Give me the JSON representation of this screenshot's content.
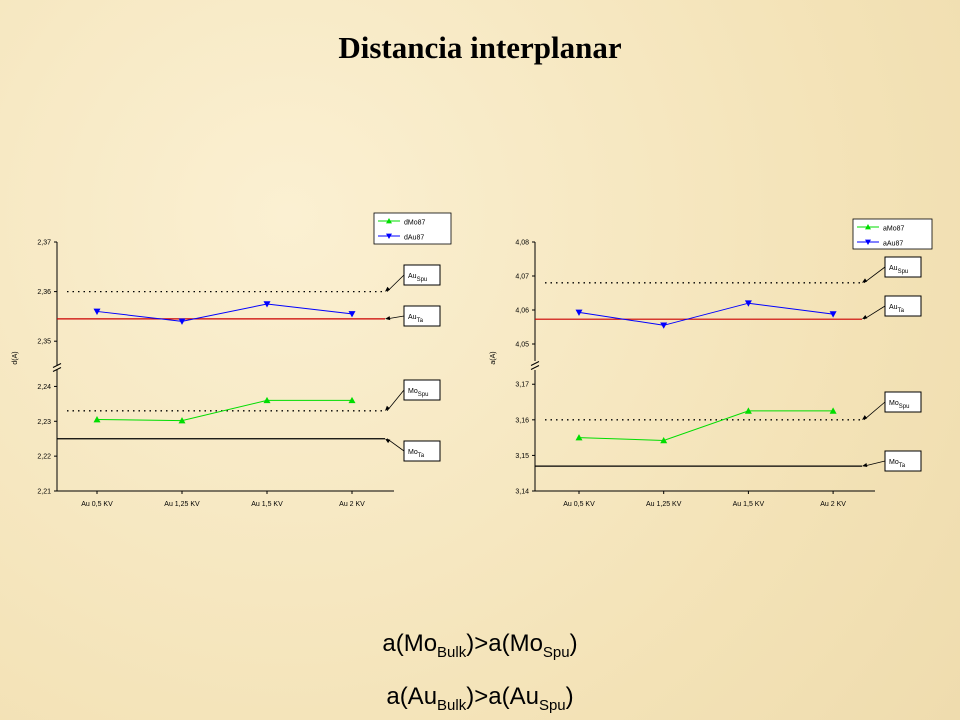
{
  "slide_title": "Distancia interplanar",
  "chart_data": [
    {
      "type": "line",
      "y_label": "d(A)",
      "categories": [
        "Au 0,5 KV",
        "Au 1,25 KV",
        "Au 1,5 KV",
        "Au 2 KV"
      ],
      "panels": [
        {
          "ylim": [
            2.345,
            2.37
          ],
          "yticks": [
            {
              "value": 2.35,
              "label": "2,35"
            },
            {
              "value": 2.36,
              "label": "2,36"
            },
            {
              "value": 2.37,
              "label": "2,37"
            }
          ]
        },
        {
          "ylim": [
            2.21,
            2.245
          ],
          "yticks": [
            {
              "value": 2.21,
              "label": "2,21"
            },
            {
              "value": 2.22,
              "label": "2,22"
            },
            {
              "value": 2.23,
              "label": "2,23"
            },
            {
              "value": 2.24,
              "label": "2,24"
            }
          ]
        }
      ],
      "series": [
        {
          "name": "dMo87",
          "color": "#00dd00",
          "marker": "triangle-up",
          "panel": 1,
          "values": [
            2.2305,
            2.2302,
            2.236,
            2.236
          ]
        },
        {
          "name": "dAu87",
          "color": "#0000ff",
          "marker": "triangle-down",
          "panel": 0,
          "values": [
            2.356,
            2.354,
            2.3575,
            2.3555
          ]
        }
      ],
      "reference_lines": [
        {
          "label": "Au",
          "sub": "Spu",
          "value": 2.36,
          "panel": 0,
          "color": "#000000",
          "dash": "dotted"
        },
        {
          "label": "Au",
          "sub": "Ta",
          "value": 2.3545,
          "panel": 0,
          "color": "#cc0000",
          "dash": "solid"
        },
        {
          "label": "Mo",
          "sub": "Spu",
          "value": 2.233,
          "panel": 1,
          "color": "#000000",
          "dash": "dotted"
        },
        {
          "label": "Mo",
          "sub": "Ta",
          "value": 2.225,
          "panel": 1,
          "color": "#000000",
          "dash": "solid"
        }
      ]
    },
    {
      "type": "line",
      "y_label": "a(A)",
      "categories": [
        "Au 0,5 KV",
        "Au 1,25 KV",
        "Au 1,5 KV",
        "Au 2 KV"
      ],
      "panels": [
        {
          "ylim": [
            4.045,
            4.08
          ],
          "yticks": [
            {
              "value": 4.05,
              "label": "4,05"
            },
            {
              "value": 4.06,
              "label": "4,06"
            },
            {
              "value": 4.07,
              "label": "4,07"
            },
            {
              "value": 4.08,
              "label": "4,08"
            }
          ]
        },
        {
          "ylim": [
            3.14,
            3.174
          ],
          "yticks": [
            {
              "value": 3.14,
              "label": "3,14"
            },
            {
              "value": 3.15,
              "label": "3,15"
            },
            {
              "value": 3.16,
              "label": "3,16"
            },
            {
              "value": 3.17,
              "label": "3,17"
            }
          ]
        }
      ],
      "series": [
        {
          "name": "aMo87",
          "color": "#00dd00",
          "marker": "triangle-up",
          "panel": 1,
          "values": [
            3.155,
            3.1542,
            3.1625,
            3.1625
          ]
        },
        {
          "name": "aAu87",
          "color": "#0000ff",
          "marker": "triangle-down",
          "panel": 0,
          "values": [
            4.0593,
            4.0555,
            4.062,
            4.0588
          ]
        }
      ],
      "reference_lines": [
        {
          "label": "Au",
          "sub": "Spu",
          "value": 4.068,
          "panel": 0,
          "color": "#000000",
          "dash": "dotted"
        },
        {
          "label": "Au",
          "sub": "Ta",
          "value": 4.0573,
          "panel": 0,
          "color": "#cc0000",
          "dash": "solid"
        },
        {
          "label": "Mo",
          "sub": "Spu",
          "value": 3.16,
          "panel": 1,
          "color": "#000000",
          "dash": "dotted"
        },
        {
          "label": "Mo",
          "sub": "Ta",
          "value": 3.147,
          "panel": 1,
          "color": "#000000",
          "dash": "solid"
        }
      ]
    }
  ],
  "conclusions": [
    [
      {
        "text": "a(Mo"
      },
      {
        "sub": "Bulk"
      },
      {
        "text": ")>a(Mo"
      },
      {
        "sub": "Spu"
      },
      {
        "text": ")"
      }
    ],
    [
      {
        "text": "a(Au"
      },
      {
        "sub": "Bulk"
      },
      {
        "text": ")>a(Au"
      },
      {
        "sub": "Spu"
      },
      {
        "text": ")"
      }
    ]
  ]
}
